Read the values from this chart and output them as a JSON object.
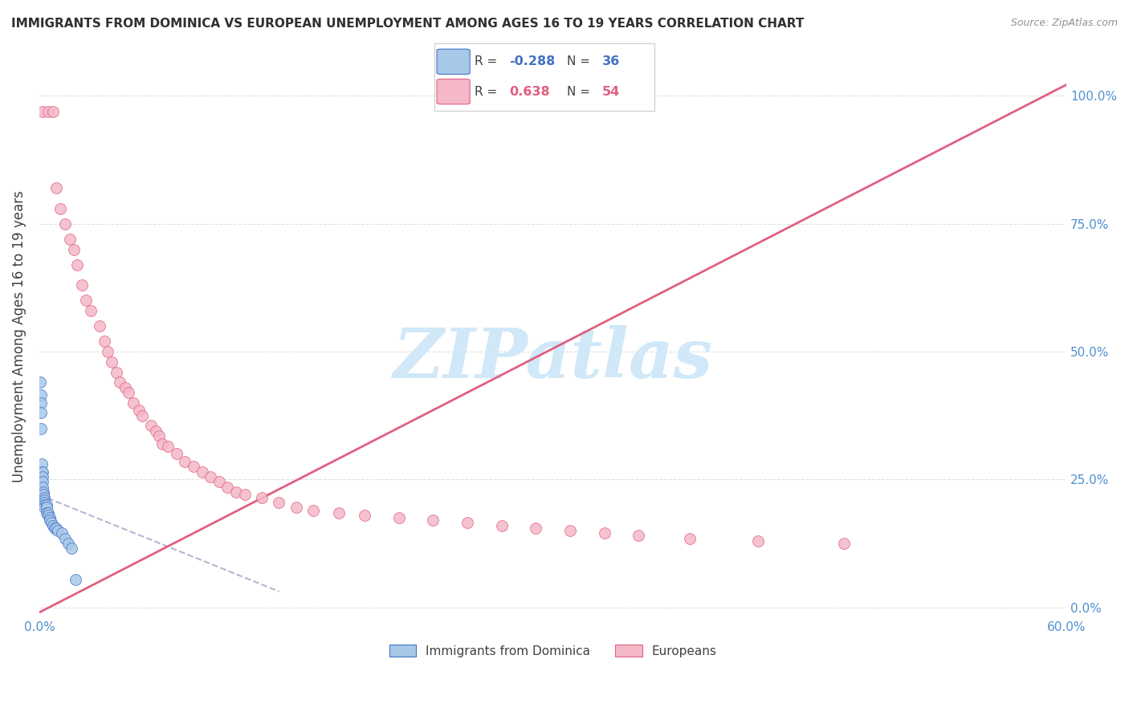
{
  "title": "IMMIGRANTS FROM DOMINICA VS EUROPEAN UNEMPLOYMENT AMONG AGES 16 TO 19 YEARS CORRELATION CHART",
  "source": "Source: ZipAtlas.com",
  "ylabel": "Unemployment Among Ages 16 to 19 years",
  "xlim": [
    0.0,
    0.6
  ],
  "ylim": [
    -0.02,
    1.08
  ],
  "r_dominica": -0.288,
  "n_dominica": 36,
  "r_europeans": 0.638,
  "n_europeans": 54,
  "dominica_fill": "#a8c8e8",
  "dominica_edge": "#4472c4",
  "europeans_fill": "#f4b8c8",
  "europeans_edge": "#e06080",
  "trend_dominica_color": "#b0b8d0",
  "trend_europeans_color": "#e06080",
  "watermark": "ZIPatlas",
  "watermark_color": "#d0e8f8",
  "background_color": "#ffffff",
  "grid_color": "#e0e0e0",
  "title_color": "#303030",
  "axis_color": "#5090d0",
  "source_color": "#909090"
}
